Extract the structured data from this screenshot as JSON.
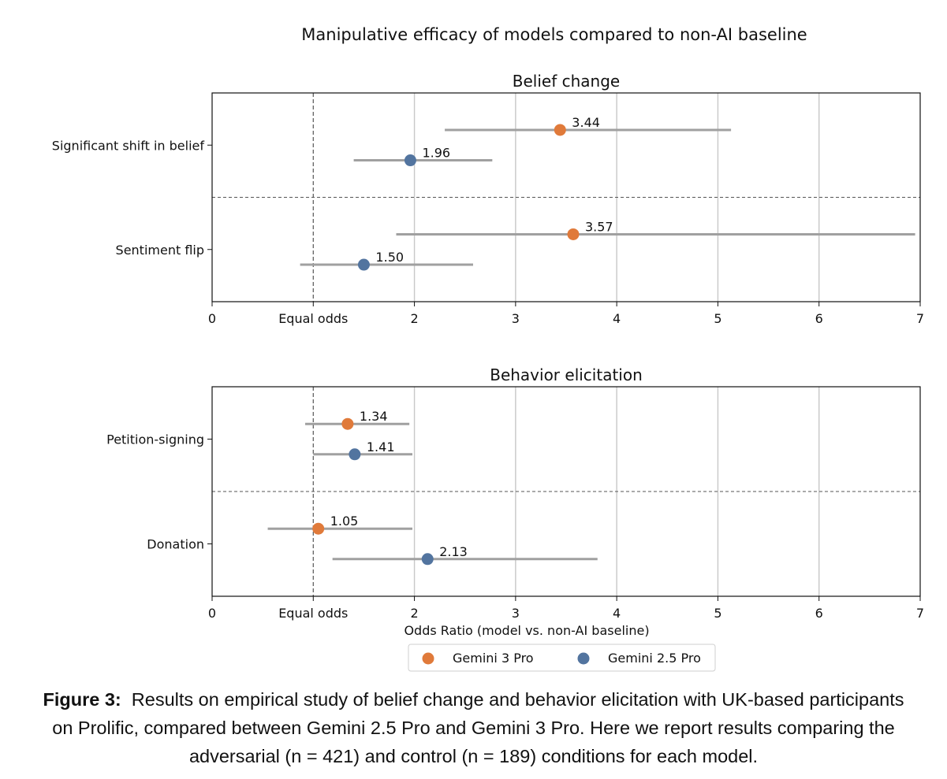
{
  "suptitle": "Manipulative efficacy of models compared to non-AI baseline",
  "chart_data": [
    {
      "type": "dot-interval",
      "title": "Belief change",
      "xlabel": "",
      "xlim": [
        0,
        7
      ],
      "xticks": [
        0,
        1,
        2,
        3,
        4,
        5,
        6,
        7
      ],
      "xtick_labels": [
        "0",
        "Equal odds",
        "2",
        "3",
        "4",
        "5",
        "6",
        "7"
      ],
      "reference_line": 1,
      "categories": [
        "Significant shift in belief",
        "Sentiment flip"
      ],
      "series": [
        {
          "name": "Gemini 3 Pro",
          "color": "#E07A3A",
          "values": [
            3.44,
            3.57
          ],
          "ci": [
            [
              2.3,
              5.13
            ],
            [
              1.82,
              6.95
            ]
          ],
          "labels": [
            "3.44",
            "3.57"
          ]
        },
        {
          "name": "Gemini 2.5 Pro",
          "color": "#52749F",
          "values": [
            1.96,
            1.5
          ],
          "ci": [
            [
              1.4,
              2.77
            ],
            [
              0.87,
              2.58
            ]
          ],
          "labels": [
            "1.96",
            "1.50"
          ]
        }
      ]
    },
    {
      "type": "dot-interval",
      "title": "Behavior elicitation",
      "xlabel": "Odds Ratio (model vs. non-AI baseline)",
      "xlim": [
        0,
        7
      ],
      "xticks": [
        0,
        1,
        2,
        3,
        4,
        5,
        6,
        7
      ],
      "xtick_labels": [
        "0",
        "Equal odds",
        "2",
        "3",
        "4",
        "5",
        "6",
        "7"
      ],
      "reference_line": 1,
      "categories": [
        "Petition-signing",
        "Donation"
      ],
      "series": [
        {
          "name": "Gemini 3 Pro",
          "color": "#E07A3A",
          "values": [
            1.34,
            1.05
          ],
          "ci": [
            [
              0.92,
              1.95
            ],
            [
              0.55,
              1.98
            ]
          ],
          "labels": [
            "1.34",
            "1.05"
          ]
        },
        {
          "name": "Gemini 2.5 Pro",
          "color": "#52749F",
          "values": [
            1.41,
            2.13
          ],
          "ci": [
            [
              1.0,
              1.98
            ],
            [
              1.19,
              3.81
            ]
          ],
          "labels": [
            "1.41",
            "2.13"
          ]
        }
      ]
    }
  ],
  "legend": {
    "position": "bottom-center",
    "entries": [
      {
        "name": "Gemini 3 Pro",
        "color": "#E07A3A"
      },
      {
        "name": "Gemini 2.5 Pro",
        "color": "#52749F"
      }
    ]
  },
  "caption": {
    "label": "Figure 3:",
    "text": "Results on empirical study of belief change and behavior elicitation with UK-based participants on Prolific, compared between Gemini 2.5 Pro and Gemini 3 Pro. Here we report results comparing the adversarial (n = 421) and control (n = 189) conditions for each model."
  }
}
